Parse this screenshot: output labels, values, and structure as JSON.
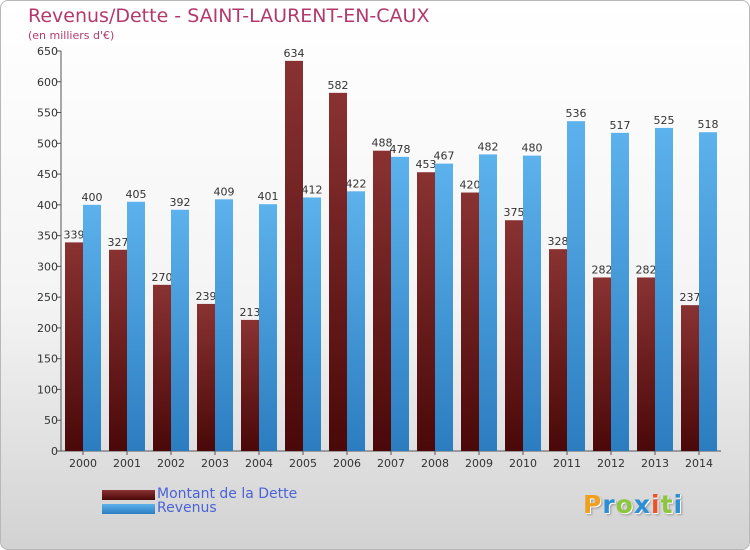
{
  "chart_data": {
    "type": "bar",
    "title": "Revenus/Dette - SAINT-LAURENT-EN-CAUX",
    "subtitle": "(en milliers d'€)",
    "categories": [
      "2000",
      "2001",
      "2002",
      "2003",
      "2004",
      "2005",
      "2006",
      "2007",
      "2008",
      "2009",
      "2010",
      "2011",
      "2012",
      "2013",
      "2014"
    ],
    "series": [
      {
        "name": "Montant de la Dette",
        "color": "#7a2424",
        "values": [
          339,
          327,
          270,
          239,
          213,
          634,
          582,
          488,
          453,
          420,
          375,
          328,
          282,
          282,
          237
        ]
      },
      {
        "name": "Revenus",
        "color": "#4aa3e0",
        "values": [
          400,
          405,
          392,
          409,
          401,
          412,
          422,
          478,
          467,
          482,
          480,
          536,
          517,
          525,
          518
        ]
      }
    ],
    "ylim": [
      0,
      650
    ],
    "yticks": [
      0,
      50,
      100,
      150,
      200,
      250,
      300,
      350,
      400,
      450,
      500,
      550,
      600,
      650
    ],
    "grid": false,
    "legend_position": "bottom-left"
  },
  "legend": {
    "items": [
      {
        "label": "Montant de la Dette",
        "color": "#7a2424"
      },
      {
        "label": "Revenus",
        "color": "#4aa3e0"
      }
    ]
  },
  "logo": {
    "letters": [
      "P",
      "r",
      "o",
      "x",
      "i",
      "t",
      "i"
    ],
    "colors": [
      "#f0a020",
      "#2b8fd6",
      "#8cc63f",
      "#2b8fd6",
      "#e8542a",
      "#8cc63f",
      "#2b8fd6"
    ]
  }
}
